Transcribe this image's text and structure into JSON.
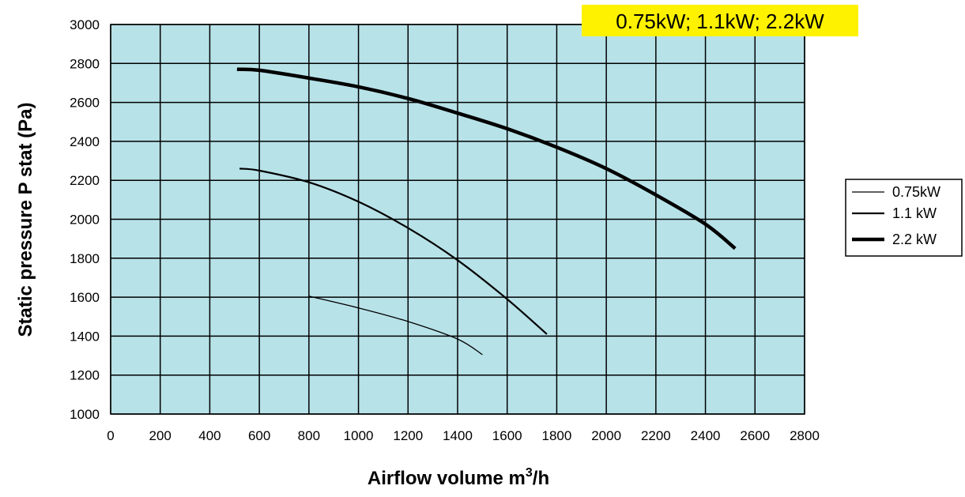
{
  "chart_data": {
    "type": "line",
    "title": "",
    "badge": "0.75kW; 1.1kW; 2.2kW",
    "xlabel": "Airflow volume m",
    "xlabel_sup": "3",
    "xlabel_suffix": "/h",
    "ylabel": "Static pressure P stat (Pa)",
    "xlim": [
      0,
      2800
    ],
    "ylim": [
      1000,
      3000
    ],
    "x_ticks": [
      0,
      200,
      400,
      600,
      800,
      1000,
      1200,
      1400,
      1600,
      1800,
      2000,
      2200,
      2400,
      2600,
      2800
    ],
    "y_ticks": [
      1000,
      1200,
      1400,
      1600,
      1800,
      2000,
      2200,
      2400,
      2600,
      2800,
      3000
    ],
    "grid": true,
    "legend_position": "right",
    "colors": {
      "plot_background": "#b7e2e8",
      "grid": "#000000",
      "line": "#000000",
      "badge": "#fff200"
    },
    "series": [
      {
        "name": "0.75kW",
        "points": [
          [
            800,
            1605
          ],
          [
            1000,
            1545
          ],
          [
            1200,
            1475
          ],
          [
            1400,
            1385
          ],
          [
            1500,
            1305
          ]
        ]
      },
      {
        "name": "1.1 kW",
        "points": [
          [
            520,
            2260
          ],
          [
            600,
            2250
          ],
          [
            800,
            2190
          ],
          [
            1000,
            2090
          ],
          [
            1200,
            1955
          ],
          [
            1400,
            1790
          ],
          [
            1600,
            1590
          ],
          [
            1760,
            1410
          ]
        ]
      },
      {
        "name": "2.2 kW",
        "points": [
          [
            510,
            2770
          ],
          [
            600,
            2765
          ],
          [
            800,
            2725
          ],
          [
            1000,
            2680
          ],
          [
            1200,
            2620
          ],
          [
            1400,
            2545
          ],
          [
            1600,
            2465
          ],
          [
            1800,
            2370
          ],
          [
            2000,
            2260
          ],
          [
            2200,
            2125
          ],
          [
            2400,
            1975
          ],
          [
            2520,
            1850
          ]
        ]
      }
    ]
  }
}
